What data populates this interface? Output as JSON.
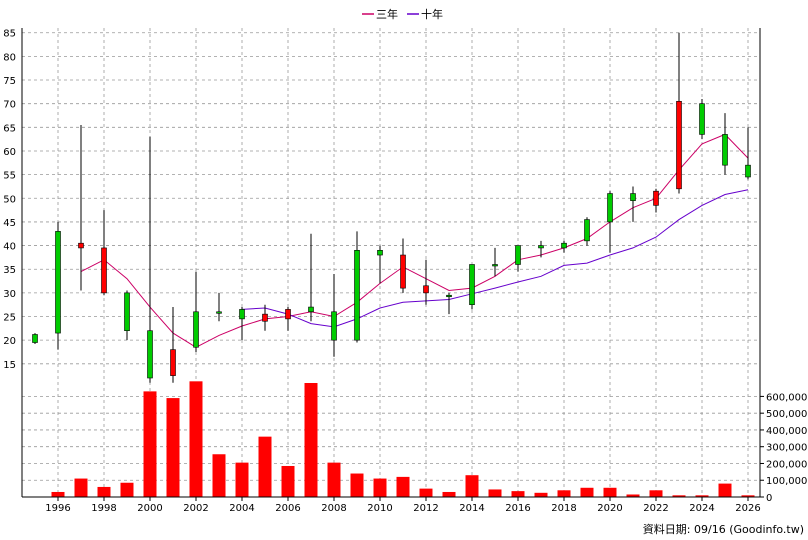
{
  "chart_data": {
    "type": "candlestick+volume",
    "legend": [
      {
        "label": "三年",
        "color": "#cc0066"
      },
      {
        "label": "十年",
        "color": "#6600cc"
      }
    ],
    "source": "資料日期: 09/16  (Goodinfo.tw)",
    "price_axis": {
      "ylim": [
        12,
        86
      ],
      "ticks": [
        15,
        20,
        25,
        30,
        35,
        40,
        45,
        50,
        55,
        60,
        65,
        70,
        75,
        80,
        85
      ]
    },
    "volume_axis": {
      "ylim": [
        0,
        680000
      ],
      "ticks": [
        0,
        100000,
        200000,
        300000,
        400000,
        500000,
        600000
      ],
      "tick_labels": [
        "0",
        "100,000",
        "200,000",
        "300,000",
        "400,000",
        "500,000",
        "600,000"
      ]
    },
    "x_axis": {
      "ticks": [
        "1996",
        "1998",
        "2000",
        "2002",
        "2004",
        "2006",
        "2008",
        "2010",
        "2012",
        "2014",
        "2016",
        "2018",
        "2020",
        "2022",
        "2024",
        "2026"
      ]
    },
    "colors": {
      "up": "#00cc00",
      "down": "#ff0000",
      "volume": "#ff0000",
      "grid": "#999999",
      "wick": "#000000"
    },
    "years": [
      1995,
      1996,
      1997,
      1998,
      1999,
      2000,
      2001,
      2002,
      2003,
      2004,
      2005,
      2006,
      2007,
      2008,
      2009,
      2010,
      2011,
      2012,
      2013,
      2014,
      2015,
      2016,
      2017,
      2018,
      2019,
      2020,
      2021,
      2022,
      2023,
      2024,
      2025,
      2026
    ],
    "candles": [
      {
        "year": 1995,
        "open": 19.5,
        "close": 21.2,
        "high": 21.5,
        "low": 19.2
      },
      {
        "year": 1996,
        "open": 21.5,
        "close": 43,
        "high": 45,
        "low": 18
      },
      {
        "year": 1997,
        "open": 40.5,
        "close": 39.5,
        "high": 65.5,
        "low": 30.5
      },
      {
        "year": 1998,
        "open": 39.5,
        "close": 30,
        "high": 47.5,
        "low": 29.5
      },
      {
        "year": 1999,
        "open": 22,
        "close": 30,
        "high": 30.5,
        "low": 20
      },
      {
        "year": 2000,
        "open": 12,
        "close": 22,
        "high": 63,
        "low": 11
      },
      {
        "year": 2001,
        "open": 18,
        "close": 12.5,
        "high": 27,
        "low": 11
      },
      {
        "year": 2002,
        "open": 18.5,
        "close": 26,
        "high": 34.5,
        "low": 17.5
      },
      {
        "year": 2003,
        "open": 26,
        "close": 26,
        "high": 30,
        "low": 24
      },
      {
        "year": 2004,
        "open": 24.5,
        "close": 26.5,
        "high": 27,
        "low": 20
      },
      {
        "year": 2005,
        "open": 25.5,
        "close": 24,
        "high": 27.5,
        "low": 22
      },
      {
        "year": 2006,
        "open": 26.5,
        "close": 24.5,
        "high": 27,
        "low": 22
      },
      {
        "year": 2007,
        "open": 26,
        "close": 27,
        "high": 42.5,
        "low": 24
      },
      {
        "year": 2008,
        "open": 20,
        "close": 26,
        "high": 34,
        "low": 16.5
      },
      {
        "year": 2009,
        "open": 20,
        "close": 39,
        "high": 43,
        "low": 19.5
      },
      {
        "year": 2010,
        "open": 38,
        "close": 39,
        "high": 40,
        "low": 32
      },
      {
        "year": 2011,
        "open": 38,
        "close": 31,
        "high": 41.5,
        "low": 30
      },
      {
        "year": 2012,
        "open": 31.5,
        "close": 30,
        "high": 37,
        "low": 27.5
      },
      {
        "year": 2013,
        "open": 29.5,
        "close": 29.5,
        "high": 30,
        "low": 25.5
      },
      {
        "year": 2014,
        "open": 27.5,
        "close": 36,
        "high": 36,
        "low": 26.5
      },
      {
        "year": 2015,
        "open": 36,
        "close": 36,
        "high": 39.5,
        "low": 33.5
      },
      {
        "year": 2016,
        "open": 36,
        "close": 40,
        "high": 40,
        "low": 34.5
      },
      {
        "year": 2017,
        "open": 39.5,
        "close": 40,
        "high": 41,
        "low": 37.5
      },
      {
        "year": 2018,
        "open": 39.5,
        "close": 40.5,
        "high": 41,
        "low": 38.5
      },
      {
        "year": 2019,
        "open": 41,
        "close": 45.5,
        "high": 46,
        "low": 40
      },
      {
        "year": 2020,
        "open": 45,
        "close": 51,
        "high": 51.5,
        "low": 38.5
      },
      {
        "year": 2021,
        "open": 49.5,
        "close": 51,
        "high": 52.5,
        "low": 45
      },
      {
        "year": 2022,
        "open": 51.5,
        "close": 48.5,
        "high": 52,
        "low": 47
      },
      {
        "year": 2023,
        "open": 70.5,
        "close": 52,
        "high": 85,
        "low": 51
      },
      {
        "year": 2024,
        "open": 63.5,
        "close": 70,
        "high": 71,
        "low": 62.5
      },
      {
        "year": 2025,
        "open": 57,
        "close": 63.5,
        "high": 68,
        "low": 55
      },
      {
        "year": 2026,
        "open": 54.5,
        "close": 57,
        "high": 65,
        "low": 54
      }
    ],
    "ma_3y": [
      {
        "year": 1997,
        "value": 34.5
      },
      {
        "year": 1998,
        "value": 37
      },
      {
        "year": 1999,
        "value": 33
      },
      {
        "year": 2000,
        "value": 27
      },
      {
        "year": 2001,
        "value": 21.5
      },
      {
        "year": 2002,
        "value": 18.5
      },
      {
        "year": 2003,
        "value": 21
      },
      {
        "year": 2004,
        "value": 23
      },
      {
        "year": 2005,
        "value": 24.5
      },
      {
        "year": 2006,
        "value": 25
      },
      {
        "year": 2007,
        "value": 26
      },
      {
        "year": 2008,
        "value": 25
      },
      {
        "year": 2009,
        "value": 28
      },
      {
        "year": 2010,
        "value": 32
      },
      {
        "year": 2011,
        "value": 35.5
      },
      {
        "year": 2012,
        "value": 33
      },
      {
        "year": 2013,
        "value": 30.5
      },
      {
        "year": 2014,
        "value": 31
      },
      {
        "year": 2015,
        "value": 33.5
      },
      {
        "year": 2016,
        "value": 37
      },
      {
        "year": 2017,
        "value": 38
      },
      {
        "year": 2018,
        "value": 39.5
      },
      {
        "year": 2019,
        "value": 41.5
      },
      {
        "year": 2020,
        "value": 45
      },
      {
        "year": 2021,
        "value": 48
      },
      {
        "year": 2022,
        "value": 50
      },
      {
        "year": 2023,
        "value": 56
      },
      {
        "year": 2024,
        "value": 61.5
      },
      {
        "year": 2025,
        "value": 63.5
      },
      {
        "year": 2026,
        "value": 58.5
      }
    ],
    "ma_10y": [
      {
        "year": 2004,
        "value": 26.5
      },
      {
        "year": 2005,
        "value": 26.8
      },
      {
        "year": 2006,
        "value": 25.5
      },
      {
        "year": 2007,
        "value": 23.5
      },
      {
        "year": 2008,
        "value": 22.8
      },
      {
        "year": 2009,
        "value": 24.5
      },
      {
        "year": 2010,
        "value": 26.8
      },
      {
        "year": 2011,
        "value": 28
      },
      {
        "year": 2012,
        "value": 28.3
      },
      {
        "year": 2013,
        "value": 28.6
      },
      {
        "year": 2014,
        "value": 29.8
      },
      {
        "year": 2015,
        "value": 31
      },
      {
        "year": 2016,
        "value": 32.3
      },
      {
        "year": 2017,
        "value": 33.5
      },
      {
        "year": 2018,
        "value": 35.8
      },
      {
        "year": 2019,
        "value": 36.3
      },
      {
        "year": 2020,
        "value": 38
      },
      {
        "year": 2021,
        "value": 39.5
      },
      {
        "year": 2022,
        "value": 41.8
      },
      {
        "year": 2023,
        "value": 45.5
      },
      {
        "year": 2024,
        "value": 48.5
      },
      {
        "year": 2025,
        "value": 50.8
      },
      {
        "year": 2026,
        "value": 51.8
      }
    ],
    "volume": [
      {
        "year": 1995,
        "value": 0
      },
      {
        "year": 1996,
        "value": 30000
      },
      {
        "year": 1997,
        "value": 110000
      },
      {
        "year": 1998,
        "value": 60000
      },
      {
        "year": 1999,
        "value": 85000
      },
      {
        "year": 2000,
        "value": 630000
      },
      {
        "year": 2001,
        "value": 590000
      },
      {
        "year": 2002,
        "value": 690000
      },
      {
        "year": 2003,
        "value": 255000
      },
      {
        "year": 2004,
        "value": 205000
      },
      {
        "year": 2005,
        "value": 360000
      },
      {
        "year": 2006,
        "value": 185000
      },
      {
        "year": 2007,
        "value": 680000
      },
      {
        "year": 2008,
        "value": 205000
      },
      {
        "year": 2009,
        "value": 140000
      },
      {
        "year": 2010,
        "value": 110000
      },
      {
        "year": 2011,
        "value": 120000
      },
      {
        "year": 2012,
        "value": 50000
      },
      {
        "year": 2013,
        "value": 30000
      },
      {
        "year": 2014,
        "value": 130000
      },
      {
        "year": 2015,
        "value": 45000
      },
      {
        "year": 2016,
        "value": 35000
      },
      {
        "year": 2017,
        "value": 25000
      },
      {
        "year": 2018,
        "value": 40000
      },
      {
        "year": 2019,
        "value": 55000
      },
      {
        "year": 2020,
        "value": 55000
      },
      {
        "year": 2021,
        "value": 15000
      },
      {
        "year": 2022,
        "value": 40000
      },
      {
        "year": 2023,
        "value": 10000
      },
      {
        "year": 2024,
        "value": 10000
      },
      {
        "year": 2025,
        "value": 80000
      },
      {
        "year": 2026,
        "value": 10000
      }
    ]
  }
}
